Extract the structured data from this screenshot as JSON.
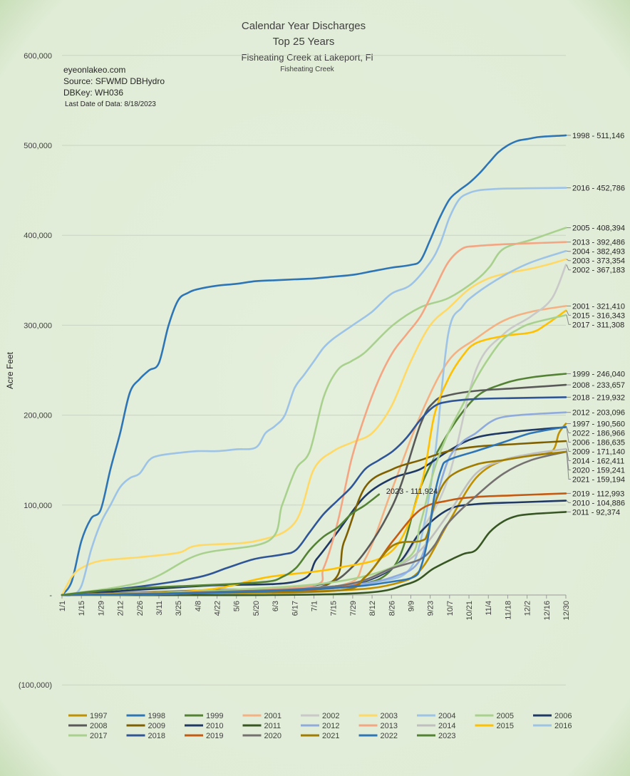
{
  "chart_data": {
    "type": "line",
    "title": "Calendar Year Discharges",
    "subtitle": "Top 25 Years",
    "subtitle2": "Fisheating Creek at Lakeport, Fl",
    "subtitle3": "Fisheating Creek",
    "notes": [
      "eyeonlakeo.com",
      "Source: SFWMD DBHydro",
      "DBKey: WH036"
    ],
    "note_small": "Last Date of Data: 8/18/2023",
    "ylabel": "Acre Feet",
    "ylim": [
      -100000,
      600000
    ],
    "y_ticks": [
      -100000,
      0,
      100000,
      200000,
      300000,
      400000,
      500000,
      600000
    ],
    "y_tick_labels": [
      "(100,000)",
      "-",
      "100,000",
      "200,000",
      "300,000",
      "400,000",
      "500,000",
      "600,000"
    ],
    "xlim": [
      1,
      365
    ],
    "x_ticks": [
      1,
      15,
      29,
      43,
      57,
      71,
      85,
      99,
      113,
      127,
      141,
      155,
      169,
      183,
      197,
      211,
      225,
      239,
      253,
      267,
      281,
      295,
      309,
      323,
      337,
      351,
      365
    ],
    "x_tick_labels": [
      "1/1",
      "1/15",
      "1/29",
      "2/12",
      "2/26",
      "3/11",
      "3/25",
      "4/8",
      "4/22",
      "5/6",
      "5/20",
      "6/3",
      "6/17",
      "7/1",
      "7/15",
      "7/29",
      "8/12",
      "8/26",
      "9/9",
      "9/23",
      "10/7",
      "10/21",
      "11/4",
      "11/18",
      "12/2",
      "12/16",
      "12/30"
    ],
    "grid": true,
    "legend_position": "bottom",
    "series": [
      {
        "name": "1997",
        "color": "#bf9000",
        "end_label": "1997 - 190,560",
        "x": [
          1,
          100,
          200,
          240,
          260,
          280,
          300,
          320,
          340,
          355,
          360,
          365
        ],
        "y": [
          0,
          2000,
          5000,
          12000,
          28000,
          80000,
          130000,
          150000,
          155000,
          160000,
          180000,
          190560
        ]
      },
      {
        "name": "1998",
        "color": "#2e75b6",
        "end_label": "1998 - 511,146",
        "x": [
          1,
          8,
          15,
          22,
          29,
          36,
          43,
          50,
          57,
          64,
          71,
          78,
          85,
          92,
          99,
          113,
          127,
          141,
          155,
          169,
          183,
          197,
          211,
          225,
          239,
          253,
          260,
          267,
          274,
          281,
          288,
          295,
          302,
          309,
          316,
          323,
          330,
          337,
          344,
          351,
          358,
          365
        ],
        "y": [
          0,
          15000,
          60000,
          85000,
          95000,
          140000,
          180000,
          225000,
          240000,
          250000,
          258000,
          300000,
          328000,
          336000,
          340000,
          344000,
          346000,
          349000,
          350000,
          351000,
          352000,
          354000,
          356000,
          360000,
          364000,
          367000,
          372000,
          395000,
          420000,
          440000,
          450000,
          458000,
          468000,
          480000,
          492000,
          500000,
          505000,
          507000,
          509000,
          510000,
          510500,
          511146
        ]
      },
      {
        "name": "1999",
        "color": "#548235",
        "end_label": "1999 - 246,040",
        "x": [
          1,
          100,
          200,
          240,
          260,
          280,
          300,
          320,
          340,
          365
        ],
        "y": [
          0,
          3000,
          10000,
          30000,
          120000,
          180000,
          220000,
          235000,
          242000,
          246040
        ]
      },
      {
        "name": "2001",
        "color": "#f4b183",
        "end_label": "2001 - 321,410",
        "x": [
          1,
          100,
          200,
          220,
          240,
          260,
          280,
          300,
          320,
          340,
          365
        ],
        "y": [
          0,
          2000,
          10000,
          40000,
          120000,
          200000,
          260000,
          285000,
          305000,
          315000,
          321410
        ]
      },
      {
        "name": "2002",
        "color": "#c9c9c9",
        "end_label": "2002 - 367,183",
        "x": [
          1,
          100,
          200,
          240,
          260,
          280,
          300,
          320,
          340,
          355,
          365
        ],
        "y": [
          0,
          3000,
          10000,
          30000,
          70000,
          130000,
          250000,
          290000,
          310000,
          330000,
          367183
        ]
      },
      {
        "name": "2003",
        "color": "#ffd966",
        "end_label": "2003 - 373,354",
        "x": [
          1,
          8,
          15,
          29,
          57,
          85,
          99,
          141,
          169,
          183,
          197,
          211,
          225,
          239,
          253,
          267,
          281,
          295,
          309,
          323,
          337,
          351,
          365
        ],
        "y": [
          0,
          20000,
          30000,
          38000,
          42000,
          47000,
          55000,
          60000,
          80000,
          140000,
          160000,
          170000,
          180000,
          210000,
          260000,
          300000,
          320000,
          340000,
          352000,
          358000,
          362000,
          367000,
          373354
        ]
      },
      {
        "name": "2004",
        "color": "#9dc3e6",
        "end_label": "2004 - 382,493",
        "x": [
          1,
          100,
          200,
          230,
          250,
          260,
          270,
          280,
          290,
          300,
          320,
          340,
          365
        ],
        "y": [
          0,
          3000,
          8000,
          15000,
          25000,
          60000,
          150000,
          290000,
          320000,
          335000,
          355000,
          370000,
          382493
        ]
      },
      {
        "name": "2005",
        "color": "#a9d18e",
        "end_label": "2005 - 408,394",
        "x": [
          1,
          60,
          100,
          150,
          160,
          170,
          180,
          190,
          200,
          210,
          220,
          240,
          260,
          280,
          300,
          310,
          320,
          340,
          365
        ],
        "y": [
          0,
          15000,
          45000,
          60000,
          100000,
          140000,
          160000,
          220000,
          250000,
          260000,
          270000,
          300000,
          320000,
          330000,
          350000,
          365000,
          385000,
          395000,
          408394
        ]
      },
      {
        "name": "2006",
        "color": "#1f3864",
        "end_label": "2006 - 186,635",
        "x": [
          1,
          100,
          170,
          185,
          200,
          220,
          240,
          260,
          280,
          300,
          330,
          365
        ],
        "y": [
          0,
          10000,
          15000,
          40000,
          70000,
          110000,
          130000,
          140000,
          160000,
          175000,
          182000,
          186635
        ]
      },
      {
        "name": "2008",
        "color": "#595959",
        "end_label": "2008 - 233,657",
        "x": [
          1,
          100,
          180,
          210,
          240,
          260,
          270,
          280,
          300,
          330,
          365
        ],
        "y": [
          0,
          5000,
          10000,
          30000,
          100000,
          190000,
          215000,
          222000,
          227000,
          230000,
          233657
        ]
      },
      {
        "name": "2009",
        "color": "#7f6000",
        "end_label": "2009 - 171,140",
        "x": [
          1,
          100,
          190,
          205,
          220,
          240,
          260,
          280,
          300,
          330,
          365
        ],
        "y": [
          0,
          3000,
          10000,
          60000,
          120000,
          140000,
          150000,
          160000,
          165000,
          168000,
          171140
        ]
      },
      {
        "name": "2010",
        "color": "#203864",
        "end_label": "2010 - 104,886",
        "x": [
          1,
          100,
          200,
          240,
          260,
          280,
          300,
          330,
          365
        ],
        "y": [
          0,
          4000,
          10000,
          30000,
          70000,
          95000,
          101000,
          103000,
          104886
        ]
      },
      {
        "name": "2011",
        "color": "#375623",
        "end_label": "2011 - 92,374",
        "x": [
          1,
          200,
          250,
          270,
          290,
          300,
          310,
          320,
          330,
          340,
          365
        ],
        "y": [
          0,
          1000,
          12000,
          30000,
          45000,
          50000,
          70000,
          82000,
          88000,
          90000,
          92374
        ]
      },
      {
        "name": "2012",
        "color": "#8faadc",
        "end_label": "2012 - 203,096",
        "x": [
          1,
          100,
          200,
          240,
          260,
          270,
          280,
          290,
          300,
          310,
          320,
          340,
          365
        ],
        "y": [
          0,
          4000,
          10000,
          20000,
          40000,
          100000,
          150000,
          170000,
          180000,
          192000,
          198000,
          201000,
          203096
        ]
      },
      {
        "name": "2013",
        "color": "#f4a582",
        "end_label": "2013 - 392,486",
        "x": [
          1,
          100,
          180,
          190,
          200,
          210,
          220,
          230,
          240,
          250,
          260,
          270,
          280,
          290,
          300,
          320,
          365
        ],
        "y": [
          0,
          4000,
          10000,
          30000,
          80000,
          150000,
          200000,
          240000,
          270000,
          290000,
          310000,
          340000,
          370000,
          385000,
          388000,
          390000,
          392486
        ]
      },
      {
        "name": "2014",
        "color": "#bfbfbf",
        "end_label": "2014 - 162,411",
        "x": [
          1,
          100,
          200,
          240,
          260,
          280,
          300,
          320,
          340,
          365
        ],
        "y": [
          0,
          2000,
          10000,
          30000,
          50000,
          90000,
          135000,
          150000,
          157000,
          162411
        ]
      },
      {
        "name": "2015",
        "color": "#ffc000",
        "end_label": "2015 - 316,343",
        "x": [
          1,
          100,
          150,
          200,
          240,
          260,
          270,
          280,
          290,
          300,
          320,
          340,
          350,
          365
        ],
        "y": [
          0,
          5000,
          20000,
          30000,
          50000,
          120000,
          200000,
          240000,
          265000,
          280000,
          288000,
          292000,
          300000,
          316343
        ]
      },
      {
        "name": "2016",
        "color": "#9dc3e6",
        "end_label": "2016 - 452,786",
        "x": [
          1,
          8,
          15,
          22,
          29,
          36,
          43,
          50,
          57,
          64,
          71,
          85,
          99,
          113,
          127,
          141,
          148,
          155,
          162,
          169,
          176,
          183,
          190,
          197,
          211,
          225,
          239,
          253,
          267,
          274,
          281,
          288,
          295,
          302,
          309,
          323,
          337,
          351,
          365
        ],
        "y": [
          0,
          0,
          10000,
          50000,
          80000,
          100000,
          120000,
          130000,
          135000,
          150000,
          155000,
          158000,
          160000,
          160000,
          162000,
          164000,
          180000,
          188000,
          200000,
          230000,
          245000,
          260000,
          275000,
          285000,
          300000,
          315000,
          335000,
          345000,
          370000,
          390000,
          420000,
          440000,
          447000,
          450000,
          451000,
          452000,
          452300,
          452500,
          452786
        ]
      },
      {
        "name": "2017",
        "color": "#a9d18e",
        "end_label": "2017 - 311,308",
        "x": [
          1,
          100,
          200,
          250,
          260,
          270,
          280,
          290,
          300,
          310,
          320,
          330,
          340,
          365
        ],
        "y": [
          0,
          4000,
          15000,
          40000,
          80000,
          140000,
          180000,
          210000,
          240000,
          265000,
          285000,
          295000,
          302000,
          311308
        ]
      },
      {
        "name": "2018",
        "color": "#2f5597",
        "end_label": "2018 - 219,932",
        "x": [
          1,
          60,
          100,
          120,
          140,
          160,
          170,
          180,
          190,
          200,
          210,
          220,
          230,
          240,
          250,
          260,
          270,
          280,
          300,
          330,
          365
        ],
        "y": [
          0,
          10000,
          20000,
          30000,
          40000,
          45000,
          50000,
          70000,
          90000,
          105000,
          120000,
          140000,
          150000,
          160000,
          175000,
          195000,
          210000,
          215000,
          218000,
          219000,
          219932
        ]
      },
      {
        "name": "2019",
        "color": "#c55a11",
        "end_label": "2019 - 112,993",
        "x": [
          1,
          100,
          200,
          220,
          240,
          260,
          280,
          300,
          330,
          365
        ],
        "y": [
          0,
          2000,
          8000,
          20000,
          60000,
          95000,
          105000,
          109000,
          111000,
          112993
        ]
      },
      {
        "name": "2020",
        "color": "#757171",
        "end_label": "2020 - 159,241",
        "x": [
          1,
          100,
          200,
          240,
          260,
          270,
          280,
          300,
          320,
          340,
          365
        ],
        "y": [
          0,
          3000,
          10000,
          30000,
          40000,
          55000,
          80000,
          110000,
          135000,
          150000,
          159241
        ]
      },
      {
        "name": "2021",
        "color": "#a07c00",
        "end_label": "2021 - 159,194",
        "x": [
          1,
          100,
          200,
          220,
          240,
          260,
          265,
          270,
          280,
          300,
          320,
          340,
          365
        ],
        "y": [
          0,
          2000,
          5000,
          20000,
          55000,
          60000,
          68000,
          100000,
          130000,
          145000,
          150000,
          155000,
          159194
        ]
      },
      {
        "name": "2022",
        "color": "#2e75b6",
        "end_label": "2022 - 186,966",
        "x": [
          1,
          100,
          200,
          240,
          255,
          260,
          265,
          270,
          275,
          280,
          300,
          320,
          340,
          365
        ],
        "y": [
          0,
          2000,
          8000,
          15000,
          20000,
          30000,
          60000,
          110000,
          140000,
          150000,
          160000,
          170000,
          180000,
          186966
        ]
      },
      {
        "name": "2023",
        "color": "#548235",
        "label_name": "2023 - 111,924",
        "x": [
          1,
          30,
          60,
          90,
          120,
          150,
          160,
          170,
          180,
          190,
          200,
          210,
          220,
          230
        ],
        "y": [
          0,
          5000,
          8000,
          10000,
          12000,
          15000,
          20000,
          30000,
          50000,
          65000,
          75000,
          90000,
          100000,
          111924
        ]
      }
    ]
  }
}
